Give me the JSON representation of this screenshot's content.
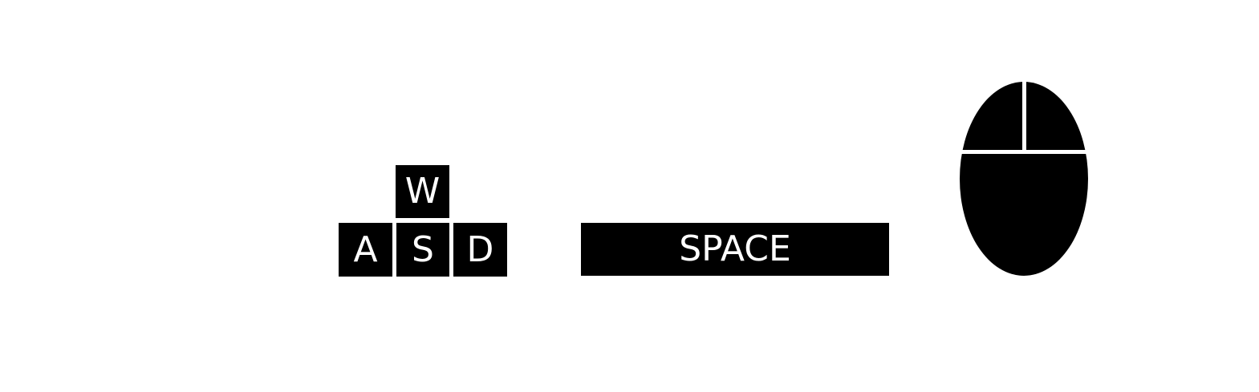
{
  "keyboard": {
    "keys": {
      "w": "W",
      "a": "A",
      "s": "S",
      "d": "D",
      "space": "SPACE"
    }
  },
  "mouse": {
    "icon": "mouse-icon"
  },
  "colors": {
    "key_fill": "#000000",
    "key_text": "#ffffff",
    "background": "#ffffff"
  }
}
